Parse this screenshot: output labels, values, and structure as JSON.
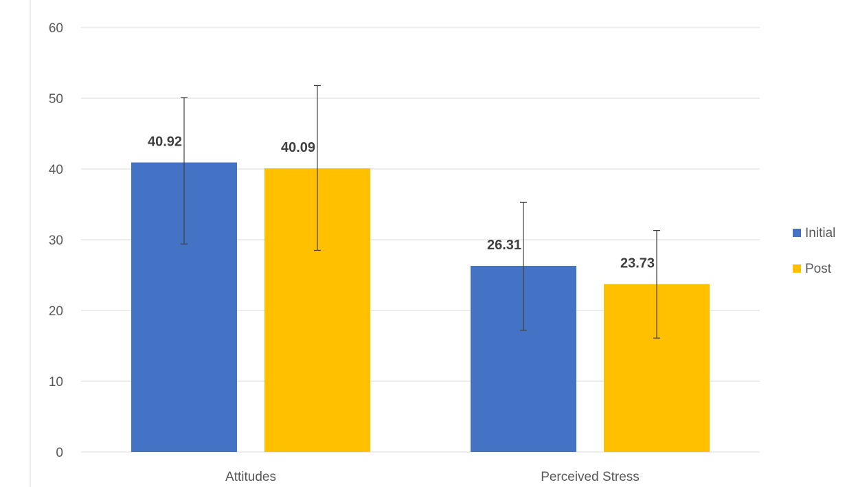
{
  "chart_data": {
    "type": "bar",
    "categories": [
      "Attitudes",
      "Perceived Stress"
    ],
    "series": [
      {
        "name": "Initial",
        "values": [
          40.92,
          26.31
        ],
        "error_low": [
          29.4,
          17.2
        ],
        "error_high": [
          50.1,
          35.3
        ],
        "labels": [
          "40.92",
          "26.31"
        ],
        "color": "#4472C4"
      },
      {
        "name": "Post",
        "values": [
          40.09,
          23.73
        ],
        "error_low": [
          28.5,
          16.1
        ],
        "error_high": [
          51.8,
          31.3
        ],
        "labels": [
          "40.09",
          "23.73"
        ],
        "color": "#FFC000"
      }
    ],
    "ylim": [
      0,
      60
    ],
    "yticks": [
      0,
      10,
      20,
      30,
      40,
      50,
      60
    ],
    "ytick_labels": [
      "0",
      "10",
      "20",
      "30",
      "40",
      "50",
      "60"
    ],
    "grid": true,
    "legend_position": "right"
  }
}
